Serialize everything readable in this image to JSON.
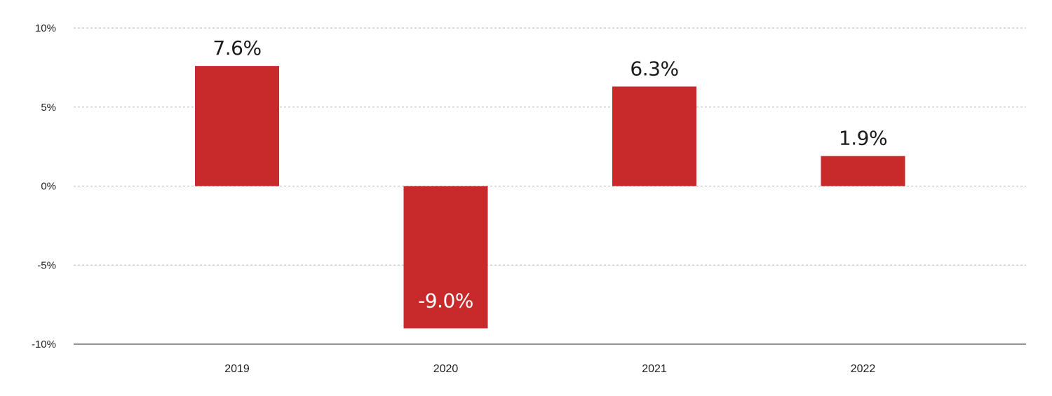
{
  "chart_data": {
    "type": "bar",
    "categories": [
      "2019",
      "2020",
      "2021",
      "2022"
    ],
    "values": [
      7.6,
      -9.0,
      6.3,
      1.9
    ],
    "data_labels": [
      "7.6%",
      "-9.0%",
      "6.3%",
      "1.9%"
    ],
    "ylim": [
      -10,
      10
    ],
    "yticks": [
      10,
      5,
      0,
      -5,
      -10
    ],
    "ytick_labels": [
      "10%",
      "5%",
      "0%",
      "-5%",
      "-10%"
    ],
    "title": "",
    "xlabel": "",
    "ylabel": "",
    "grid": true,
    "legend": "none",
    "colors": {
      "bar": "#c8292b",
      "label_outside": "#1a1a1a",
      "label_inside": "#ffffff",
      "grid": "#b5b5b5",
      "axis": "#555555"
    }
  }
}
